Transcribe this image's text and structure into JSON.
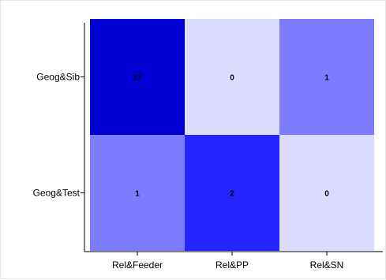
{
  "chart_data": {
    "type": "heatmap",
    "title": "",
    "xlabel": "",
    "ylabel": "",
    "x_categories": [
      "Rel&Feeder",
      "Rel&PP",
      "Rel&SN"
    ],
    "y_categories": [
      "Geog&Sib",
      "Geog&Test"
    ],
    "values": [
      [
        17,
        0,
        1
      ],
      [
        1,
        2,
        0
      ]
    ],
    "cell_colors": [
      [
        "#0000d2",
        "#dcdcff",
        "#7c7cff"
      ],
      [
        "#7c7cff",
        "#2424ff",
        "#dcdcff"
      ]
    ],
    "grid": false,
    "legend": "none"
  }
}
